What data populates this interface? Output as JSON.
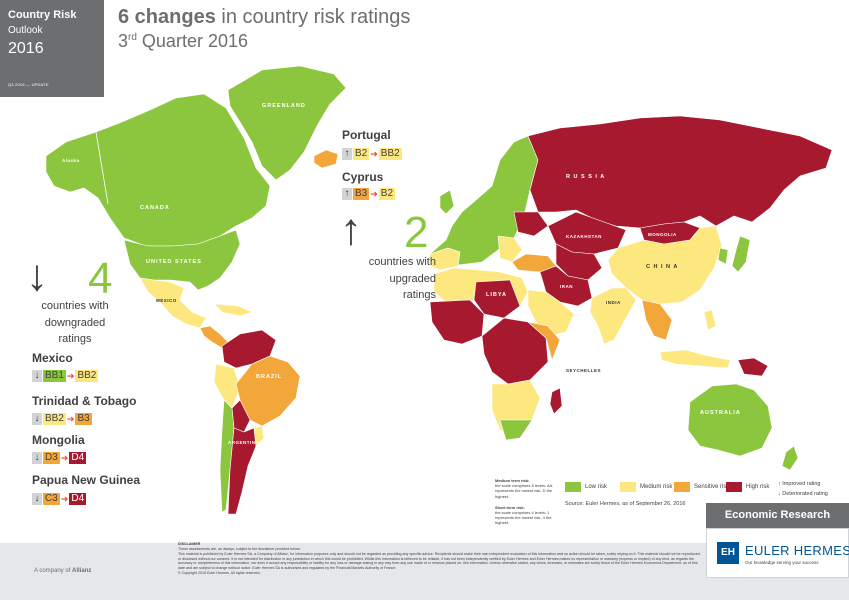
{
  "badge": {
    "line1": "Country Risk",
    "line2": "Outlook",
    "year": "2016",
    "small": "Q3 2016 — UPDATE"
  },
  "header": {
    "title_count": "6 changes",
    "title_rest": " in country risk ratings",
    "subtitle_num": "3",
    "subtitle_sup": "rd",
    "subtitle_rest": " Quarter 2016"
  },
  "colors": {
    "low": "#8cc63f",
    "medium": "#fde880",
    "sensitive": "#f3a73b",
    "high": "#a6192e",
    "ocean": "#ffffff"
  },
  "map_labels": {
    "greenland": "GREENLAND",
    "alaska": "Alaska",
    "canada": "CANADA",
    "us": "UNITED STATES",
    "mexico": "MEXICO",
    "brazil": "BRAZIL",
    "argentina": "ARGENTINA",
    "russia": "R U S S I A",
    "kazakhstan": "KAZAKHSTAN",
    "mongolia": "MONGOLIA",
    "china": "C H I N A",
    "india": "INDIA",
    "iran": "IRAN",
    "libya": "LIBYA",
    "australia": "AUSTRALIA",
    "seychelles": "SEYCHELLES"
  },
  "upgraded": {
    "count": "2",
    "arrow": "↑",
    "caption_l1": "countries with",
    "caption_l2": "upgraded",
    "caption_l3": "ratings",
    "items": [
      {
        "name": "Portugal",
        "from": "B2",
        "to": "BB2",
        "dir": "↑"
      },
      {
        "name": "Cyprus",
        "from": "B3",
        "to": "B2",
        "dir": "↑"
      }
    ]
  },
  "downgraded": {
    "count": "4",
    "arrow": "↓",
    "caption_l1": "countries with",
    "caption_l2": "downgraded",
    "caption_l3": "ratings",
    "items": [
      {
        "name": "Mexico",
        "from": "BB1",
        "to": "BB2",
        "dir": "↓"
      },
      {
        "name": "Trinidad & Tobago",
        "from": "BB2",
        "to": "B3",
        "dir": "↓"
      },
      {
        "name": "Mongolia",
        "from": "D3",
        "to": "D4",
        "dir": "↓"
      },
      {
        "name": "Papua New Guinea",
        "from": "C3",
        "to": "D4",
        "dir": "↓"
      }
    ]
  },
  "legend": {
    "low": "Low risk",
    "medium": "Medium risk",
    "sensitive": "Sensitive risk",
    "high": "High risk",
    "improved": "Improved rating",
    "deteriorated": "Deteriorated rating",
    "improved_icon": "↑",
    "deteriorated_icon": "↓",
    "source": "Source: Euler Hermes, as of September 26, 2016",
    "medium_note_head": "Medium term risk:",
    "medium_note_body": "the scale comprises 8 levels: AA represents the lowest risk, D the highest.",
    "short_note_head": "Short term risk:",
    "short_note_body": "the scale comprises 4 levels: 1 represents the lowest risk, 4 the highest."
  },
  "footer": {
    "econ": "Economic Research",
    "eh_logo": "EH",
    "eh_name": "EULER HERMES",
    "eh_tag": "Our knowledge serving your success",
    "allianz_prefix": "A company of ",
    "allianz_name": "Allianz",
    "disclaimer_head": "DISCLAIMER",
    "disclaimer_l1": "These assessments are, as always, subject to the disclaimer provided below.",
    "disclaimer_body": "This material is published by Euler Hermes SA, a Company of Allianz, for information purposes only and should not be regarded as providing any specific advice. Recipients should make their own independent evaluation of this information and no action should be taken, solely relying on it. This material should not be reproduced or disclosed without our consent. It is not intended for distribution in any jurisdiction in which this would be prohibited. Whilst this information is believed to be reliable, it has not been independently verified by Euler Hermes and Euler Hermes makes no representation or warranty (express or implied) of any kind, as regards the accuracy or completeness of this information, nor does it accept any responsibility or liability for any loss or damage arising in any way from any use made of or reliance placed on, this information. Unless otherwise stated, any views, forecasts, or estimates are solely those of the Euler Hermes Economics Department, as of this date and are subject to change without notice. Euler Hermes SA is authorised and regulated by the Financial Markets Authority of France.",
    "copyright": "© Copyright 2016 Euler Hermes. All rights reserved."
  }
}
